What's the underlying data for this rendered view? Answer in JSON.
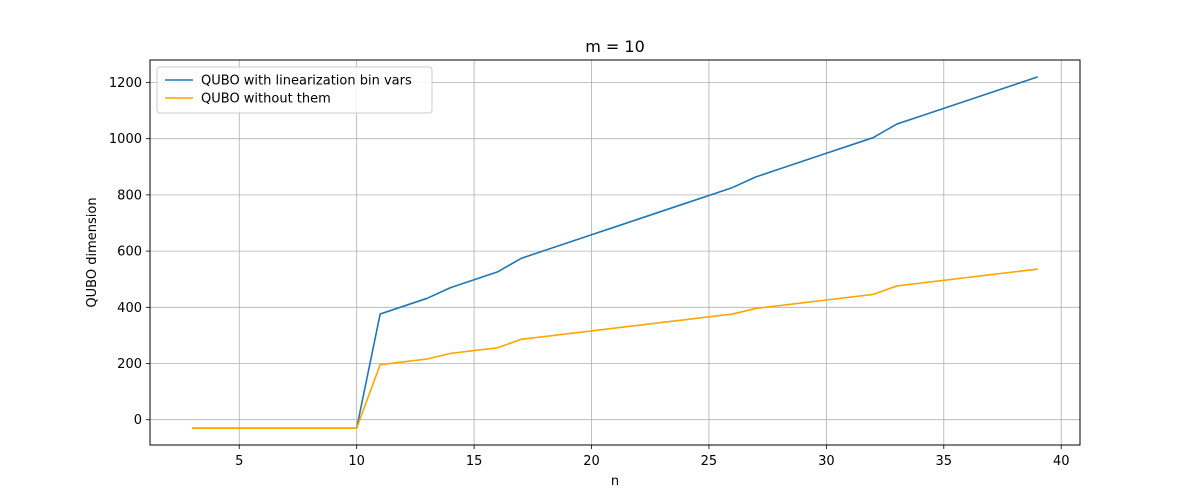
{
  "chart_data": {
    "type": "line",
    "title": "m = 10",
    "xlabel": "n",
    "ylabel": "QUBO dimension",
    "xlim": [
      1.2,
      40.8
    ],
    "ylim": [
      -90,
      1280
    ],
    "xticks": [
      5,
      10,
      15,
      20,
      25,
      30,
      35,
      40
    ],
    "yticks": [
      0,
      200,
      400,
      600,
      800,
      1000,
      1200
    ],
    "grid": true,
    "legend_position": "upper-left",
    "x": [
      3,
      4,
      5,
      6,
      7,
      8,
      9,
      10,
      11,
      12,
      13,
      14,
      15,
      16,
      17,
      18,
      19,
      20,
      21,
      22,
      23,
      24,
      25,
      26,
      27,
      28,
      29,
      30,
      31,
      32,
      33,
      34,
      35,
      36,
      37,
      38,
      39
    ],
    "series": [
      {
        "name": "QUBO with linearization bin vars",
        "color": "#1f77b4",
        "values": [
          -30,
          -30,
          -30,
          -30,
          -30,
          -30,
          -30,
          -30,
          376,
          404,
          432,
          470,
          498,
          526,
          574,
          602,
          630,
          658,
          686,
          714,
          742,
          770,
          798,
          826,
          864,
          892,
          920,
          948,
          976,
          1004,
          1052,
          1080,
          1108,
          1136,
          1164,
          1192,
          1220
        ]
      },
      {
        "name": "QUBO without them",
        "color": "#ffa500",
        "values": [
          -30,
          -30,
          -30,
          -30,
          -30,
          -30,
          -30,
          -30,
          196,
          206,
          216,
          236,
          246,
          256,
          286,
          296,
          306,
          316,
          326,
          336,
          346,
          356,
          366,
          376,
          396,
          406,
          416,
          426,
          436,
          446,
          476,
          486,
          496,
          506,
          516,
          526,
          536
        ]
      }
    ]
  }
}
